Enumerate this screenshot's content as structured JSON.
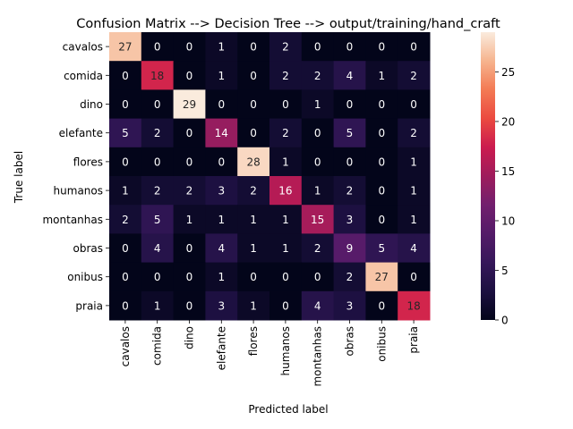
{
  "chart_data": {
    "type": "heatmap",
    "title": "Confusion Matrix --> Decision Tree --> output/training/hand_craft",
    "xlabel": "Predicted label",
    "ylabel": "True label",
    "categories": [
      "cavalos",
      "comida",
      "dino",
      "elefante",
      "flores",
      "humanos",
      "montanhas",
      "obras",
      "onibus",
      "praia"
    ],
    "matrix": [
      [
        27,
        0,
        0,
        1,
        0,
        2,
        0,
        0,
        0,
        0
      ],
      [
        0,
        18,
        0,
        1,
        0,
        2,
        2,
        4,
        1,
        2
      ],
      [
        0,
        0,
        29,
        0,
        0,
        0,
        1,
        0,
        0,
        0
      ],
      [
        5,
        2,
        0,
        14,
        0,
        2,
        0,
        5,
        0,
        2
      ],
      [
        0,
        0,
        0,
        0,
        28,
        1,
        0,
        0,
        0,
        1
      ],
      [
        1,
        2,
        2,
        3,
        2,
        16,
        1,
        2,
        0,
        1
      ],
      [
        2,
        5,
        1,
        1,
        1,
        1,
        15,
        3,
        0,
        1
      ],
      [
        0,
        4,
        0,
        4,
        1,
        1,
        2,
        9,
        5,
        4
      ],
      [
        0,
        0,
        0,
        1,
        0,
        0,
        0,
        2,
        27,
        0
      ],
      [
        0,
        1,
        0,
        3,
        1,
        0,
        4,
        3,
        0,
        18
      ]
    ],
    "colorbar": {
      "range": [
        0,
        29
      ],
      "ticks": [
        0,
        5,
        10,
        15,
        20,
        25
      ]
    }
  }
}
